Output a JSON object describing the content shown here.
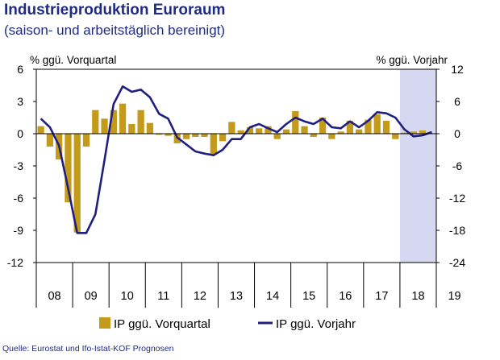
{
  "header": {
    "title": "Industrieproduktion Euroraum",
    "subtitle": "(saison- und arbeitstäglich bereinigt)"
  },
  "footer": {
    "source": "Quelle: Eurostat und Ifo-Istat-KOF Prognosen"
  },
  "colors": {
    "bars": "#c49a1a",
    "line": "#1f1f80",
    "forecast_shade": "#d6d8f2",
    "text": "#1f2c83"
  },
  "chart_data": {
    "type": "bar",
    "title": "Industrieproduktion Euroraum",
    "subtitle": "(saison- und arbeitstäglich bereinigt)",
    "ylabel": "% ggü. Vorquartal",
    "y2label": "% ggü. Vorjahr",
    "ylim": [
      -12,
      6
    ],
    "y2lim": [
      -24,
      12
    ],
    "yticks": [
      6,
      3,
      0,
      -3,
      -6,
      -9,
      -12
    ],
    "y2ticks": [
      12,
      6,
      0,
      -6,
      -12,
      -18,
      -24
    ],
    "year_labels": [
      "08",
      "09",
      "10",
      "11",
      "12",
      "13",
      "14",
      "15",
      "16",
      "17",
      "18",
      "19"
    ],
    "forecast_from_quarter_index": 40,
    "grid": false,
    "legend_position": "bottom",
    "series": [
      {
        "name": "IP ggü. Vorquartal",
        "type": "bar",
        "axis": "left",
        "values": [
          0.7,
          -1.2,
          -2.4,
          -6.4,
          -9.2,
          -1.2,
          2.2,
          1.4,
          2.2,
          2.8,
          0.9,
          2.2,
          1.0,
          -0.1,
          -0.2,
          -0.9,
          -0.5,
          -0.3,
          -0.3,
          -1.9,
          -0.7,
          1.1,
          0.3,
          0.6,
          0.5,
          0.7,
          -0.5,
          0.4,
          2.1,
          0.7,
          -0.3,
          1.5,
          -0.5,
          0.2,
          1.2,
          0.4,
          1.3,
          1.8,
          1.2,
          -0.5,
          0.1,
          0.2,
          0.3,
          0.0
        ]
      },
      {
        "name": "IP ggü. Vorjahr",
        "type": "line",
        "axis": "right",
        "values": [
          2.8,
          1.2,
          -2.2,
          -10.2,
          -18.5,
          -18.5,
          -15.0,
          -5.0,
          5.5,
          8.8,
          7.8,
          8.2,
          6.8,
          3.7,
          2.8,
          -0.7,
          -2.0,
          -3.3,
          -3.7,
          -4.0,
          -3.0,
          -1.0,
          -1.0,
          1.2,
          1.8,
          1.0,
          0.3,
          1.8,
          3.0,
          2.3,
          1.8,
          2.8,
          1.2,
          1.0,
          2.3,
          1.2,
          2.4,
          4.0,
          3.8,
          3.0,
          0.8,
          -0.5,
          -0.3,
          0.3
        ]
      }
    ]
  }
}
